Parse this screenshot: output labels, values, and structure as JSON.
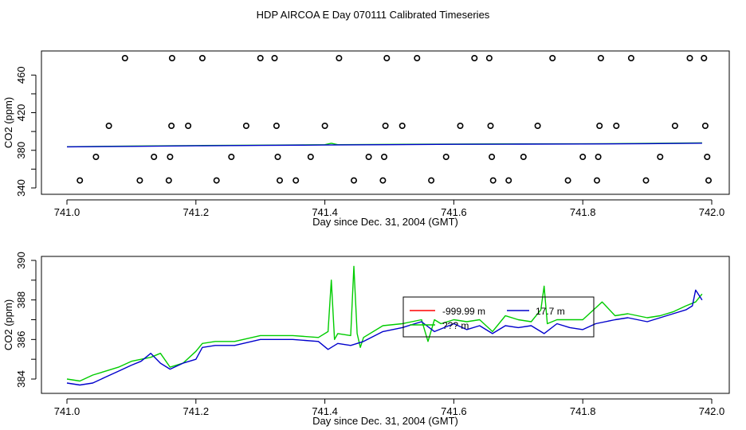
{
  "title": "HDP AIRCOA E  Day 070111  Calibrated Timeseries",
  "chart_data": [
    {
      "type": "scatter",
      "xlabel": "Day since Dec. 31, 2004 (GMT)",
      "ylabel": "CO2 (ppm)",
      "xlim": [
        741.0,
        742.0
      ],
      "ylim": [
        340,
        478
      ],
      "x_ticks": [
        "741.0",
        "741.2",
        "741.4",
        "741.6",
        "741.8",
        "742.0"
      ],
      "y_ticks": [
        "340",
        "380",
        "420",
        "460"
      ],
      "y_minor_ticks": [
        360,
        400,
        440
      ],
      "grid": false,
      "colors": {
        "green": "#00cc00",
        "blue": "#0000cc",
        "black": "#000000"
      },
      "points": [
        {
          "x": 741.02,
          "y": 348
        },
        {
          "x": 741.045,
          "y": 373
        },
        {
          "x": 741.065,
          "y": 406
        },
        {
          "x": 741.09,
          "y": 478
        },
        {
          "x": 741.113,
          "y": 348
        },
        {
          "x": 741.135,
          "y": 373
        },
        {
          "x": 741.158,
          "y": 348
        },
        {
          "x": 741.16,
          "y": 373
        },
        {
          "x": 741.162,
          "y": 406
        },
        {
          "x": 741.163,
          "y": 478
        },
        {
          "x": 741.188,
          "y": 406
        },
        {
          "x": 741.21,
          "y": 478
        },
        {
          "x": 741.232,
          "y": 348
        },
        {
          "x": 741.255,
          "y": 373
        },
        {
          "x": 741.278,
          "y": 406
        },
        {
          "x": 741.3,
          "y": 478
        },
        {
          "x": 741.322,
          "y": 478
        },
        {
          "x": 741.325,
          "y": 406
        },
        {
          "x": 741.327,
          "y": 373
        },
        {
          "x": 741.33,
          "y": 348
        },
        {
          "x": 741.355,
          "y": 348
        },
        {
          "x": 741.378,
          "y": 373
        },
        {
          "x": 741.4,
          "y": 406
        },
        {
          "x": 741.422,
          "y": 478
        },
        {
          "x": 741.445,
          "y": 348
        },
        {
          "x": 741.468,
          "y": 373
        },
        {
          "x": 741.49,
          "y": 348
        },
        {
          "x": 741.492,
          "y": 373
        },
        {
          "x": 741.494,
          "y": 406
        },
        {
          "x": 741.496,
          "y": 478
        },
        {
          "x": 741.52,
          "y": 406
        },
        {
          "x": 741.543,
          "y": 478
        },
        {
          "x": 741.565,
          "y": 348
        },
        {
          "x": 741.588,
          "y": 373
        },
        {
          "x": 741.61,
          "y": 406
        },
        {
          "x": 741.632,
          "y": 478
        },
        {
          "x": 741.655,
          "y": 478
        },
        {
          "x": 741.657,
          "y": 406
        },
        {
          "x": 741.659,
          "y": 373
        },
        {
          "x": 741.661,
          "y": 348
        },
        {
          "x": 741.685,
          "y": 348
        },
        {
          "x": 741.708,
          "y": 373
        },
        {
          "x": 741.73,
          "y": 406
        },
        {
          "x": 741.753,
          "y": 478
        },
        {
          "x": 741.777,
          "y": 348
        },
        {
          "x": 741.8,
          "y": 373
        },
        {
          "x": 741.822,
          "y": 348
        },
        {
          "x": 741.824,
          "y": 373
        },
        {
          "x": 741.826,
          "y": 406
        },
        {
          "x": 741.828,
          "y": 478
        },
        {
          "x": 741.852,
          "y": 406
        },
        {
          "x": 741.875,
          "y": 478
        },
        {
          "x": 741.898,
          "y": 348
        },
        {
          "x": 741.92,
          "y": 373
        },
        {
          "x": 741.943,
          "y": 406
        },
        {
          "x": 741.966,
          "y": 478
        },
        {
          "x": 741.988,
          "y": 478
        },
        {
          "x": 741.99,
          "y": 406
        },
        {
          "x": 741.993,
          "y": 373
        },
        {
          "x": 741.995,
          "y": 348
        }
      ],
      "series": [
        {
          "color": "green",
          "x": [
            741.0,
            741.1,
            741.2,
            741.3,
            741.4,
            741.41,
            741.42,
            741.5,
            741.6,
            741.7,
            741.8,
            741.9,
            741.985
          ],
          "y": [
            383.8,
            384.5,
            385.0,
            385.5,
            386.0,
            387.5,
            386.0,
            386.3,
            386.6,
            386.8,
            386.9,
            387.3,
            387.9
          ]
        },
        {
          "color": "blue",
          "x": [
            741.0,
            741.1,
            741.2,
            741.3,
            741.4,
            741.5,
            741.6,
            741.7,
            741.8,
            741.9,
            741.985
          ],
          "y": [
            383.7,
            384.2,
            384.8,
            385.2,
            385.6,
            386.0,
            386.4,
            386.6,
            386.7,
            387.1,
            387.6
          ]
        }
      ]
    },
    {
      "type": "line",
      "xlabel": "Day since Dec. 31, 2004 (GMT)",
      "ylabel": "CO2 (ppm)",
      "xlim": [
        741.0,
        742.0
      ],
      "ylim": [
        383.4,
        390.0
      ],
      "x_ticks": [
        "741.0",
        "741.2",
        "741.4",
        "741.6",
        "741.8",
        "742.0"
      ],
      "y_ticks": [
        "384",
        "386",
        "388",
        "390"
      ],
      "y_minor_ticks": [
        385,
        387,
        389
      ],
      "grid": false,
      "legend": {
        "placement": "center",
        "entries": [
          {
            "label": "-999.99 m",
            "color": "#ff0000"
          },
          {
            "label": "17.7 m",
            "color": "#0000cc"
          },
          {
            "label": "??? m",
            "color": "#00cc00"
          }
        ]
      },
      "series": [
        {
          "color": "#00cc00",
          "x": [
            741.0,
            741.02,
            741.04,
            741.06,
            741.08,
            741.1,
            741.115,
            741.13,
            741.145,
            741.16,
            741.18,
            741.2,
            741.21,
            741.23,
            741.26,
            741.3,
            741.35,
            741.39,
            741.405,
            741.41,
            741.415,
            741.42,
            741.44,
            741.445,
            741.45,
            741.455,
            741.46,
            741.49,
            741.52,
            741.55,
            741.56,
            741.57,
            741.58,
            741.6,
            741.62,
            741.64,
            741.66,
            741.68,
            741.7,
            741.72,
            741.735,
            741.74,
            741.745,
            741.76,
            741.78,
            741.8,
            741.82,
            741.83,
            741.85,
            741.87,
            741.9,
            741.92,
            741.94,
            741.96,
            741.975,
            741.985
          ],
          "y": [
            384.0,
            383.9,
            384.2,
            384.4,
            384.6,
            384.9,
            385.0,
            385.1,
            385.3,
            384.6,
            384.8,
            385.4,
            385.8,
            385.9,
            385.9,
            386.2,
            386.2,
            386.1,
            386.4,
            389.0,
            386.0,
            386.3,
            386.2,
            389.7,
            386.3,
            385.6,
            386.1,
            386.7,
            386.8,
            387.0,
            385.9,
            387.0,
            386.8,
            387.0,
            386.9,
            387.0,
            386.4,
            387.2,
            387.0,
            386.9,
            387.5,
            388.7,
            386.8,
            387.0,
            387.0,
            387.0,
            387.6,
            387.9,
            387.2,
            387.3,
            387.1,
            387.2,
            387.4,
            387.7,
            387.9,
            388.3
          ]
        },
        {
          "color": "#0000cc",
          "x": [
            741.0,
            741.02,
            741.04,
            741.06,
            741.08,
            741.1,
            741.115,
            741.13,
            741.145,
            741.16,
            741.18,
            741.2,
            741.21,
            741.23,
            741.26,
            741.3,
            741.35,
            741.39,
            741.405,
            741.42,
            741.44,
            741.46,
            741.49,
            741.52,
            741.55,
            741.57,
            741.6,
            741.62,
            741.64,
            741.66,
            741.68,
            741.7,
            741.72,
            741.74,
            741.76,
            741.78,
            741.8,
            741.82,
            741.85,
            741.87,
            741.9,
            741.92,
            741.94,
            741.96,
            741.97,
            741.975,
            741.985
          ],
          "y": [
            383.8,
            383.7,
            383.8,
            384.1,
            384.4,
            384.7,
            384.9,
            385.3,
            384.8,
            384.5,
            384.8,
            385.0,
            385.6,
            385.7,
            385.7,
            386.0,
            386.0,
            385.9,
            385.5,
            385.8,
            385.7,
            385.9,
            386.4,
            386.6,
            386.9,
            386.4,
            386.8,
            386.5,
            386.7,
            386.3,
            386.7,
            386.6,
            386.7,
            386.3,
            386.8,
            386.6,
            386.5,
            386.8,
            387.0,
            387.1,
            386.9,
            387.1,
            387.3,
            387.5,
            387.7,
            388.5,
            388.0
          ]
        }
      ]
    }
  ]
}
